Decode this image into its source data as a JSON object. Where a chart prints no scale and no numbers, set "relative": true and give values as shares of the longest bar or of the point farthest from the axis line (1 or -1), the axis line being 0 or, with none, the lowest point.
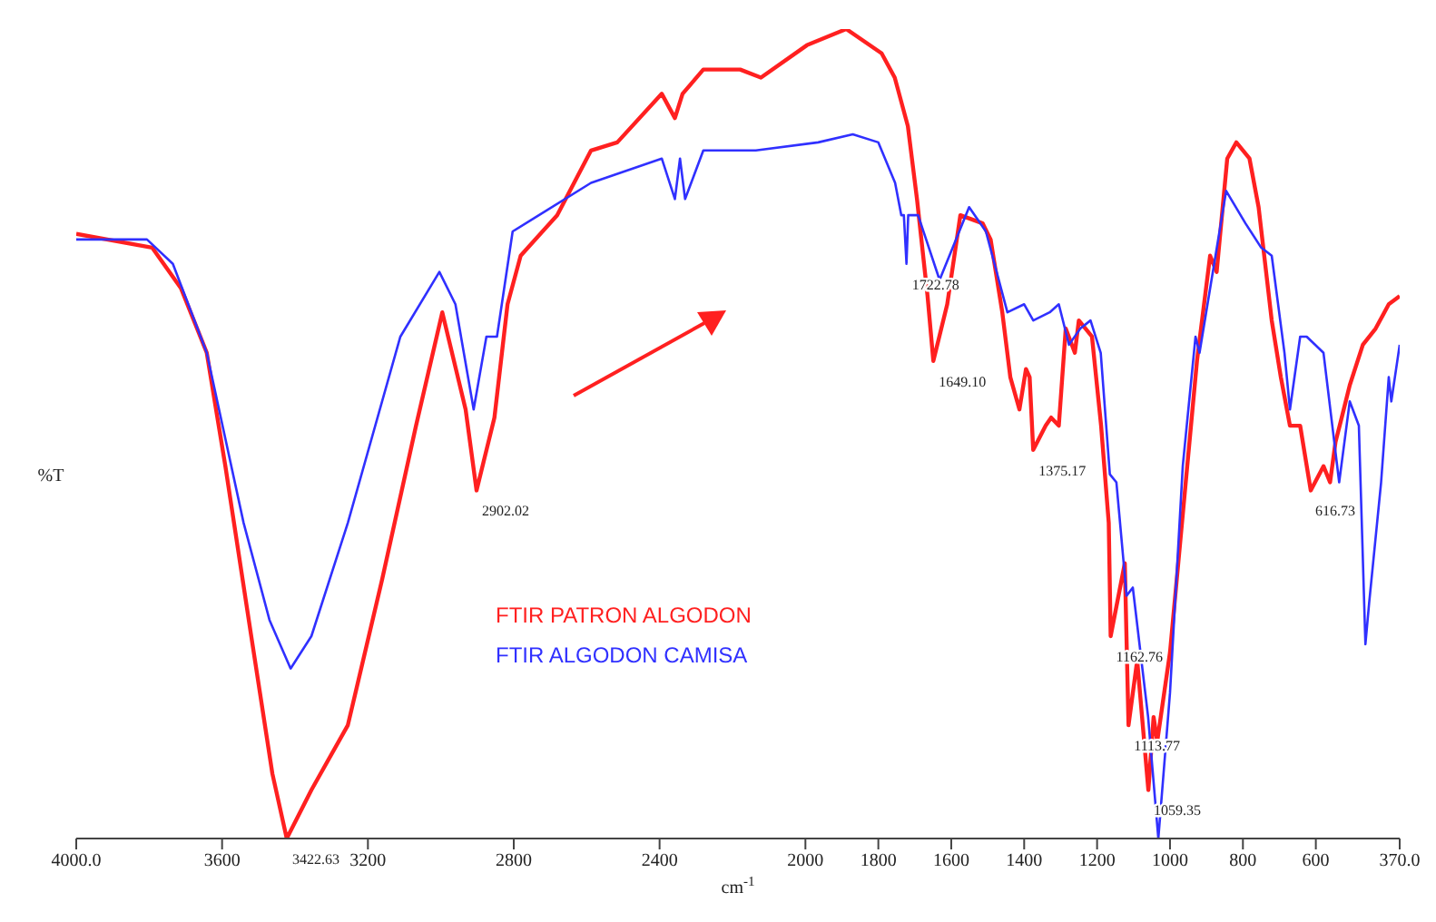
{
  "chart_data": {
    "type": "line",
    "relative": true,
    "xlabel": "cm$^{-1}$",
    "ylabel": "%T",
    "xlim": [
      4000,
      370
    ],
    "xticks": [
      {
        "value": 4000,
        "label": "4000.0"
      },
      3600,
      3200,
      2800,
      2400,
      2000,
      1800,
      1600,
      1400,
      1200,
      1000,
      800,
      600,
      {
        "value": 370,
        "label": "370.0"
      }
    ],
    "legend": "center",
    "series": [
      {
        "name": "FTIR PATRON ALGODON",
        "color": "#ff2020",
        "x": [
          4000,
          3792,
          3713,
          3642,
          3591,
          3520,
          3462,
          3422.63,
          3355,
          3255,
          3161,
          3068,
          2996,
          2932,
          2902.02,
          2853,
          2817,
          2781,
          2681,
          2588,
          2516,
          2394,
          2358,
          2337,
          2280,
          2179,
          2122,
          1996,
          1888,
          1791,
          1755,
          1719,
          1694,
          1665,
          1649.1,
          1611,
          1575,
          1514,
          1492,
          1460,
          1438,
          1413,
          1395,
          1385,
          1375.17,
          1341,
          1326,
          1305,
          1286,
          1261,
          1250,
          1214,
          1189,
          1168,
          1162.76,
          1124,
          1113.77,
          1090,
          1059.35,
          1045,
          1035,
          1000,
          926,
          890,
          872,
          843,
          818,
          782,
          757,
          721,
          696,
          671,
          643,
          614,
          579,
          561,
          546,
          529,
          507,
          471,
          436,
          400,
          370
        ],
        "values": [
          0.747,
          0.73,
          0.68,
          0.6,
          0.46,
          0.25,
          0.08,
          0,
          0.06,
          0.14,
          0.32,
          0.51,
          0.65,
          0.53,
          0.43,
          0.52,
          0.66,
          0.72,
          0.77,
          0.85,
          0.86,
          0.92,
          0.89,
          0.92,
          0.95,
          0.95,
          0.94,
          0.98,
          1,
          0.97,
          0.94,
          0.88,
          0.79,
          0.67,
          0.59,
          0.66,
          0.77,
          0.76,
          0.74,
          0.65,
          0.57,
          0.53,
          0.58,
          0.57,
          0.48,
          0.51,
          0.52,
          0.51,
          0.63,
          0.6,
          0.64,
          0.62,
          0.51,
          0.39,
          0.25,
          0.34,
          0.14,
          0.22,
          0.06,
          0.15,
          0.12,
          0.23,
          0.59,
          0.72,
          0.7,
          0.84,
          0.86,
          0.84,
          0.78,
          0.64,
          0.57,
          0.51,
          0.51,
          0.43,
          0.46,
          0.44,
          0.49,
          0.52,
          0.56,
          0.61,
          0.63,
          0.66,
          0.67
        ]
      },
      {
        "name": "FTIR ALGODON CAMISA",
        "color": "#3030ff",
        "x": [
          4000,
          3806,
          3735,
          3642,
          3541,
          3470,
          3412,
          3355,
          3255,
          3111,
          3004,
          2960,
          2910,
          2875,
          2846,
          2803,
          2731,
          2588,
          2394,
          2358,
          2344,
          2330,
          2280,
          2136,
          1965,
          1870,
          1800,
          1754,
          1737,
          1730,
          1722.78,
          1718,
          1691,
          1632,
          1551,
          1505,
          1446,
          1400,
          1375,
          1330,
          1305,
          1277,
          1246,
          1218,
          1190,
          1165,
          1147,
          1119,
          1102,
          1060,
          1032,
          1000,
          965,
          930,
          919,
          846,
          793,
          750,
          721,
          686,
          671,
          643,
          625,
          579,
          536,
          507,
          482,
          464,
          454,
          421,
          400,
          393,
          370
        ],
        "values": [
          0.74,
          0.74,
          0.71,
          0.6,
          0.39,
          0.27,
          0.21,
          0.25,
          0.39,
          0.62,
          0.7,
          0.66,
          0.53,
          0.62,
          0.62,
          0.75,
          0.77,
          0.81,
          0.84,
          0.79,
          0.84,
          0.79,
          0.85,
          0.85,
          0.86,
          0.87,
          0.86,
          0.81,
          0.77,
          0.77,
          0.71,
          0.77,
          0.77,
          0.69,
          0.78,
          0.75,
          0.65,
          0.66,
          0.64,
          0.65,
          0.66,
          0.61,
          0.63,
          0.64,
          0.6,
          0.45,
          0.44,
          0.3,
          0.31,
          0.15,
          0,
          0.18,
          0.46,
          0.62,
          0.6,
          0.8,
          0.76,
          0.73,
          0.72,
          0.6,
          0.53,
          0.62,
          0.62,
          0.6,
          0.44,
          0.54,
          0.51,
          0.24,
          0.29,
          0.44,
          0.57,
          0.54,
          0.61
        ]
      }
    ],
    "annotations": [
      {
        "text": "3422.63",
        "x": 3422.63,
        "y": 0
      },
      {
        "text": "2902.02",
        "x": 2902.02,
        "y": 0.43
      },
      {
        "text": "1722.78",
        "x": 1722.78,
        "y": 0.71
      },
      {
        "text": "1649.10",
        "x": 1649.1,
        "y": 0.59
      },
      {
        "text": "1375.17",
        "x": 1375.17,
        "y": 0.48
      },
      {
        "text": "1162.76",
        "x": 1162.76,
        "y": 0.25
      },
      {
        "text": "1113.77",
        "x": 1113.77,
        "y": 0.14
      },
      {
        "text": "1059.35",
        "x": 1059.35,
        "y": 0.06
      },
      {
        "text": "616.73",
        "x": 616.73,
        "y": 0.43
      }
    ]
  }
}
